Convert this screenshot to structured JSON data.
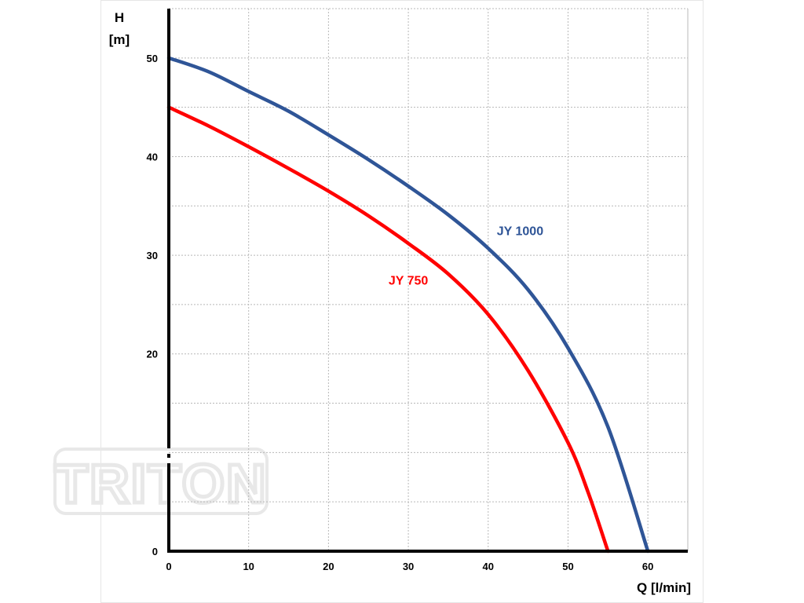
{
  "chart_data": {
    "type": "line",
    "title": "",
    "xlabel": "Q [l/min]",
    "ylabel_line1": "H",
    "ylabel_line2": "[m]",
    "xlim": [
      0,
      65
    ],
    "ylim": [
      0,
      55
    ],
    "xticks": [
      0,
      10,
      20,
      30,
      40,
      50,
      60
    ],
    "yticks": [
      0,
      20,
      30,
      40,
      50
    ],
    "grid": true,
    "grid_x_step": 10,
    "grid_y_step": 5,
    "series": [
      {
        "name": "JY 1000",
        "color": "#2f5597",
        "x": [
          0,
          5,
          10,
          15,
          20,
          25,
          30,
          35,
          40,
          45,
          50,
          55,
          60
        ],
        "y": [
          50,
          48.6,
          46.6,
          44.6,
          42.2,
          39.7,
          37.0,
          34.1,
          30.7,
          26.5,
          20.6,
          12.6,
          0
        ]
      },
      {
        "name": "JY 750",
        "color": "#ff0000",
        "x": [
          0,
          5,
          10,
          15,
          20,
          25,
          30,
          35,
          40,
          45,
          50,
          52.5,
          55
        ],
        "y": [
          45,
          43.1,
          41.0,
          38.8,
          36.5,
          34.0,
          31.2,
          28.1,
          24.0,
          18.3,
          11.0,
          6.0,
          0
        ]
      }
    ],
    "annotations": [
      {
        "text": "JY 1000",
        "x": 44,
        "y": 32.5,
        "color": "#2f5597"
      },
      {
        "text": "JY 750",
        "x": 30,
        "y": 27.5,
        "color": "#ff0000"
      }
    ]
  },
  "watermark": {
    "text": "TRITON"
  }
}
